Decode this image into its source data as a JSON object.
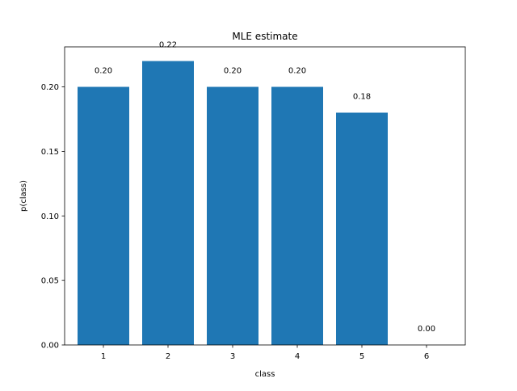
{
  "chart_data": {
    "type": "bar",
    "title": "MLE estimate",
    "xlabel": "class",
    "ylabel": "p(class)",
    "categories": [
      "1",
      "2",
      "3",
      "4",
      "5",
      "6"
    ],
    "values": [
      0.2,
      0.22,
      0.2,
      0.2,
      0.18,
      0.0
    ],
    "value_labels": [
      "0.20",
      "0.22",
      "0.20",
      "0.20",
      "0.18",
      "0.00"
    ],
    "ylim": [
      0,
      0.231
    ],
    "yticks": [
      0.0,
      0.05,
      0.1,
      0.15,
      0.2
    ],
    "ytick_labels": [
      "0.00",
      "0.05",
      "0.10",
      "0.15",
      "0.20"
    ],
    "bar_color": "#1f77b4",
    "grid": false,
    "legend": "none"
  }
}
